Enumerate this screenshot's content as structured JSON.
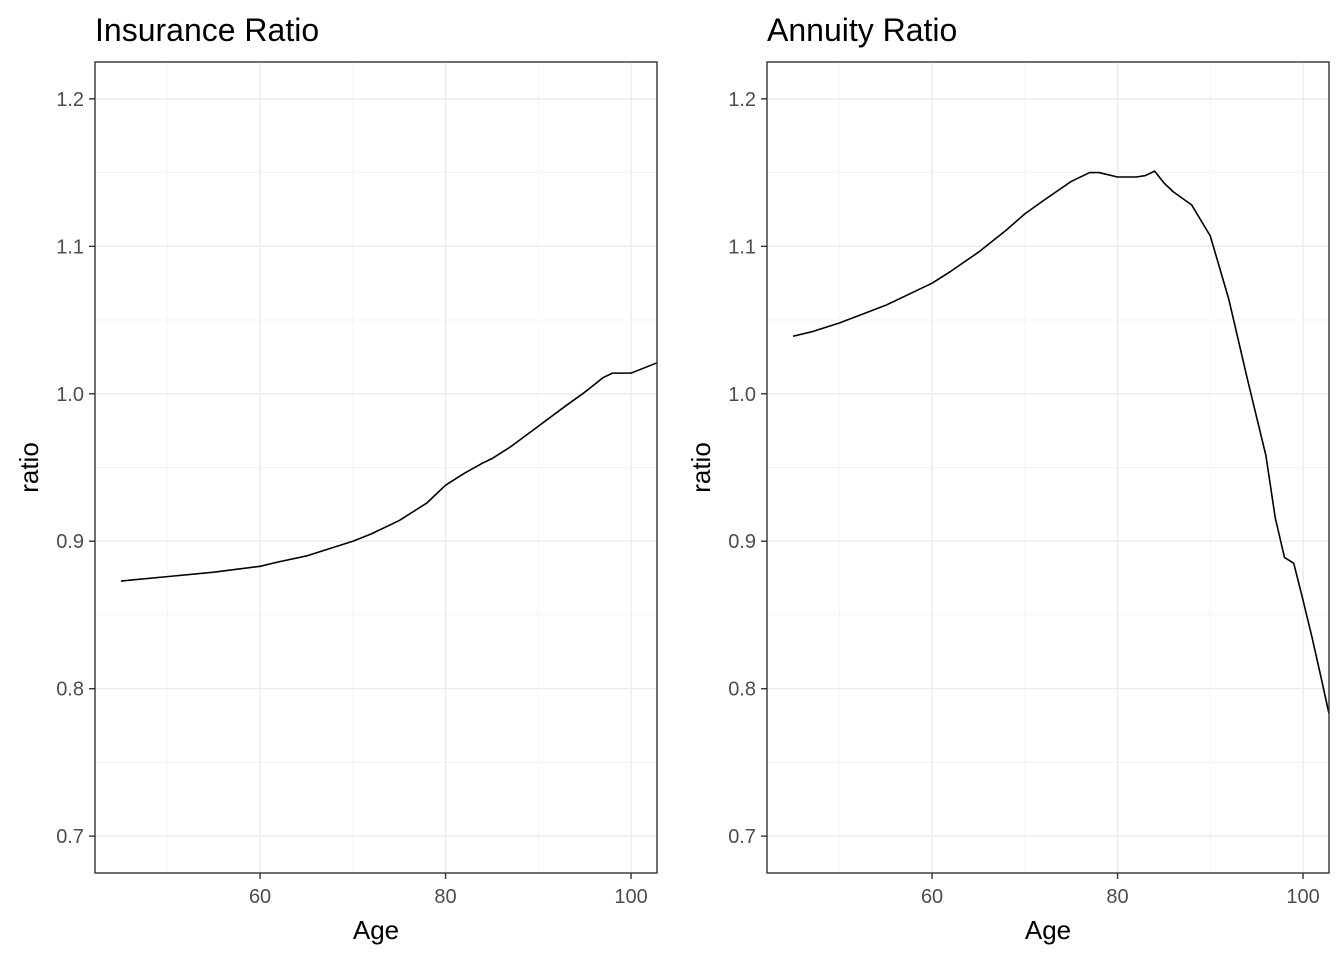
{
  "chart_data": [
    {
      "type": "line",
      "title": "Insurance Ratio",
      "xlabel": "Age",
      "ylabel": "ratio",
      "xlim": [
        42.2,
        102.8
      ],
      "ylim": [
        0.675,
        1.225
      ],
      "x_ticks": [
        60,
        80,
        100
      ],
      "x_tick_labels": [
        "60",
        "80",
        "100"
      ],
      "y_ticks": [
        0.7,
        0.8,
        0.9,
        1.0,
        1.1,
        1.2
      ],
      "y_tick_labels": [
        "0.7",
        "0.8",
        "0.9",
        "1.0",
        "1.1",
        "1.2"
      ],
      "grid": true,
      "series": [
        {
          "x": [
            45,
            50,
            55,
            60,
            62,
            65,
            68,
            70,
            72,
            75,
            78,
            80,
            82,
            84,
            85,
            87,
            90,
            93,
            95,
            97,
            98,
            100,
            102.8
          ],
          "y": [
            0.873,
            0.876,
            0.879,
            0.883,
            0.886,
            0.89,
            0.896,
            0.9,
            0.905,
            0.914,
            0.926,
            0.938,
            0.946,
            0.953,
            0.956,
            0.964,
            0.978,
            0.992,
            1.001,
            1.011,
            1.014,
            1.014,
            1.021
          ]
        }
      ]
    },
    {
      "type": "line",
      "title": "Annuity Ratio",
      "xlabel": "Age",
      "ylabel": "ratio",
      "xlim": [
        42.2,
        102.8
      ],
      "ylim": [
        0.675,
        1.225
      ],
      "x_ticks": [
        60,
        80,
        100
      ],
      "x_tick_labels": [
        "60",
        "80",
        "100"
      ],
      "y_ticks": [
        0.7,
        0.8,
        0.9,
        1.0,
        1.1,
        1.2
      ],
      "y_tick_labels": [
        "0.7",
        "0.8",
        "0.9",
        "1.0",
        "1.1",
        "1.2"
      ],
      "grid": true,
      "series": [
        {
          "x": [
            45,
            47,
            50,
            55,
            60,
            62,
            65,
            68,
            70,
            72,
            75,
            77,
            78,
            80,
            82,
            83,
            84,
            85,
            86,
            88,
            90,
            92,
            94,
            96,
            97,
            98,
            99,
            100,
            101,
            102,
            102.8
          ],
          "y": [
            1.039,
            1.042,
            1.048,
            1.06,
            1.075,
            1.083,
            1.096,
            1.111,
            1.122,
            1.131,
            1.144,
            1.15,
            1.15,
            1.147,
            1.147,
            1.148,
            1.151,
            1.143,
            1.137,
            1.128,
            1.107,
            1.064,
            1.01,
            0.958,
            0.916,
            0.889,
            0.885,
            0.86,
            0.834,
            0.806,
            0.783
          ]
        }
      ]
    }
  ]
}
